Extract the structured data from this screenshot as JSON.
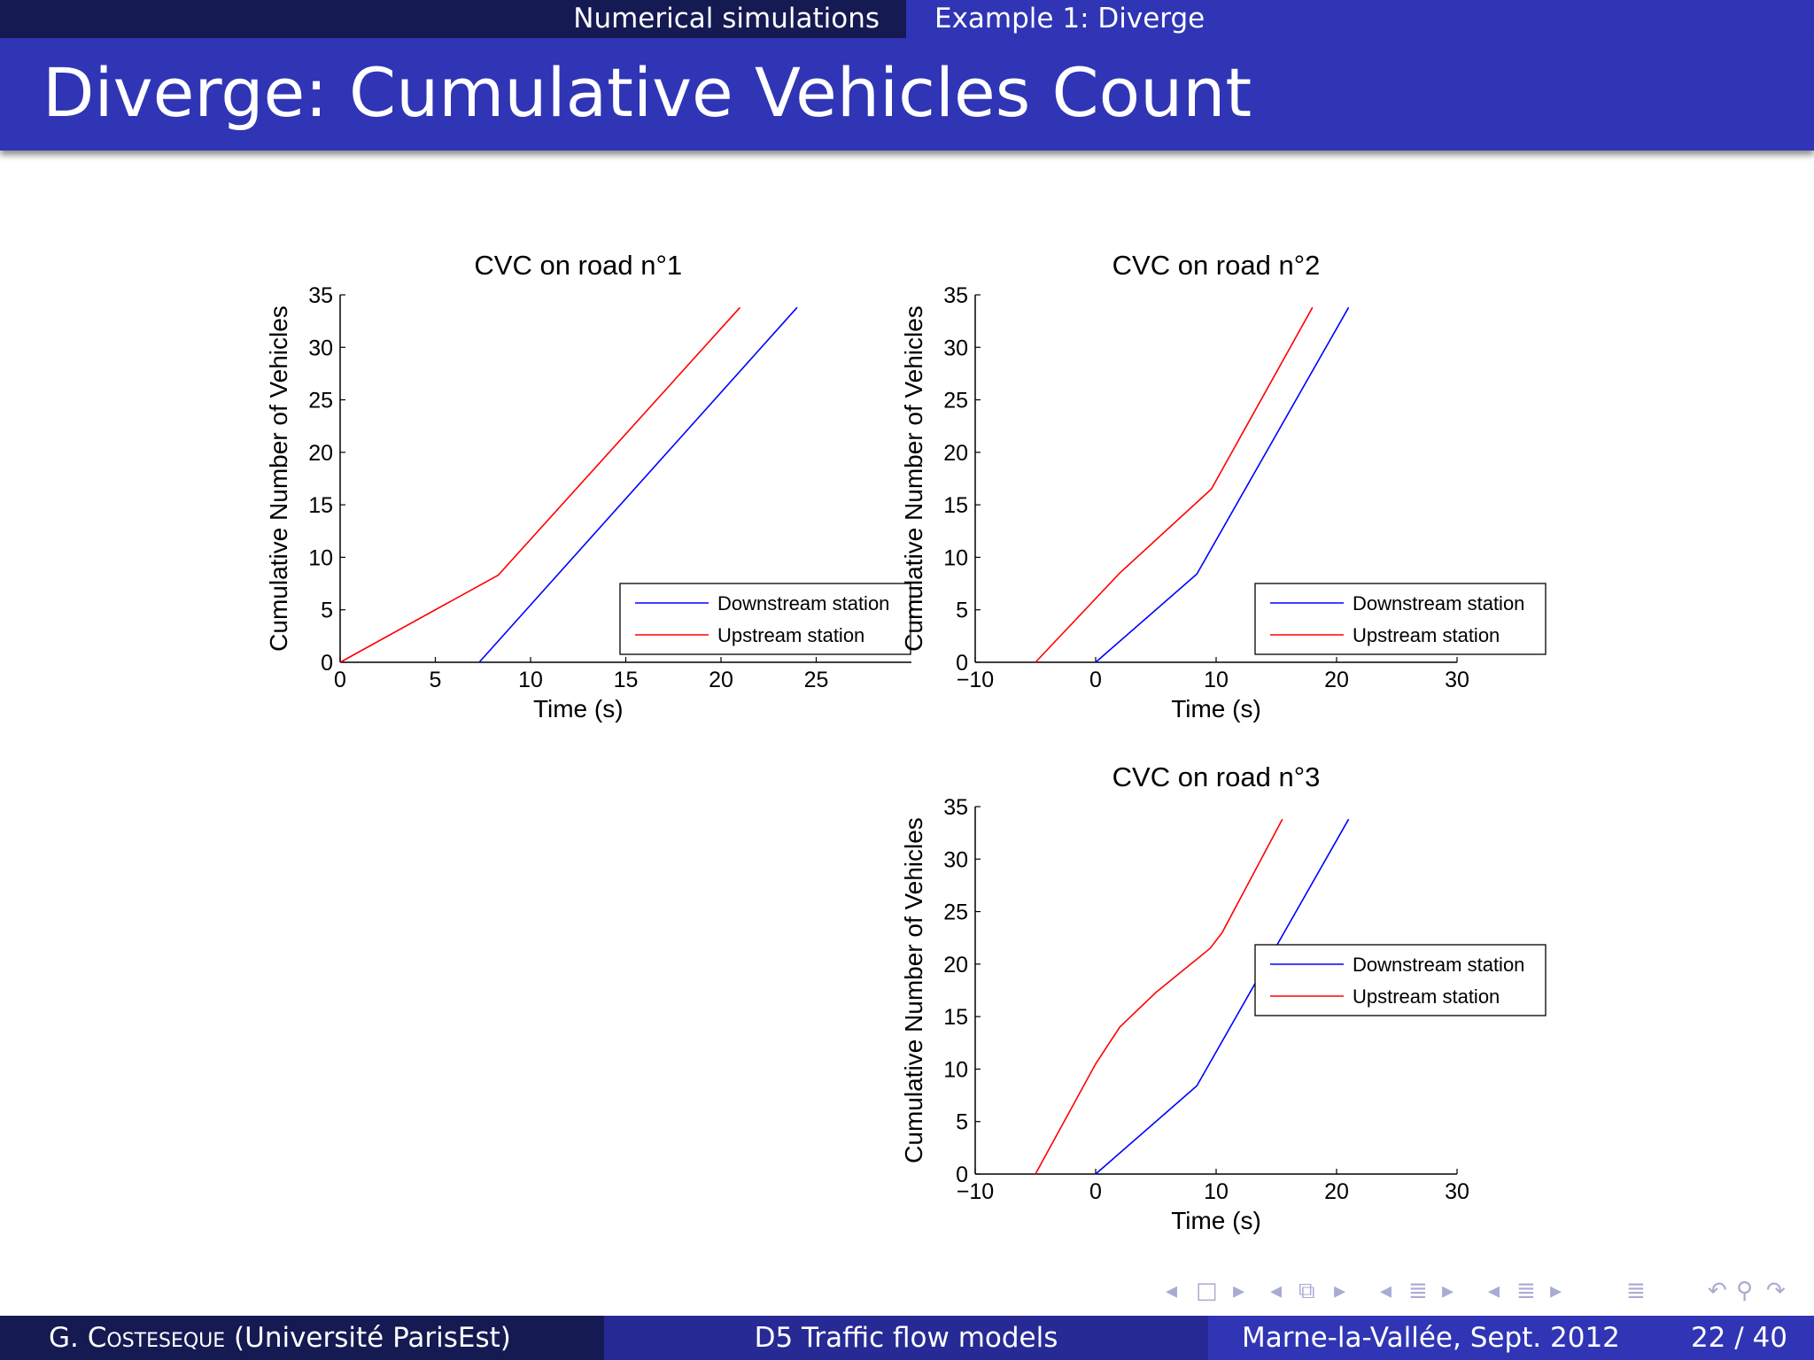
{
  "nav": {
    "section": "Numerical simulations",
    "subsection": "Example 1: Diverge"
  },
  "slide": {
    "title": "Diverge: Cumulative Vehicles Count"
  },
  "footer": {
    "author": "G. Costeseque",
    "institution": "(Université ParisEst)",
    "talk_title": "D5 Traffic flow models",
    "place_date": "Marne-la-Vallée, Sept. 2012",
    "page": "22 / 40"
  },
  "colors": {
    "downstream": "#0000ff",
    "upstream": "#ff0000",
    "nav_dark": "#151a52",
    "nav_accent": "#3035b5"
  },
  "chart_data": [
    {
      "type": "line",
      "title": "CVC on road n°1",
      "xlabel": "Time (s)",
      "ylabel": "Cumulative Number of Vehicles",
      "xlim": [
        0,
        30
      ],
      "ylim": [
        0,
        35
      ],
      "xticks": [
        0,
        5,
        10,
        15,
        20,
        25
      ],
      "xtick_labels": [
        "0",
        "5",
        "10",
        "15",
        "20",
        "25"
      ],
      "yticks": [
        0,
        5,
        10,
        15,
        20,
        25,
        30,
        35
      ],
      "ytick_labels": [
        "0",
        "5",
        "10",
        "15",
        "20",
        "25",
        "30",
        "35"
      ],
      "legend_position": "lower-right",
      "series": [
        {
          "name": "Downstream station",
          "color": "#0000ff",
          "x": [
            7.3,
            24
          ],
          "y": [
            0,
            33.8
          ]
        },
        {
          "name": "Upstream station",
          "color": "#ff0000",
          "x": [
            0,
            8.3,
            21
          ],
          "y": [
            0,
            8.3,
            33.8
          ]
        }
      ]
    },
    {
      "type": "line",
      "title": "CVC on road n°2",
      "xlabel": "Time (s)",
      "ylabel": "Cumulative Number of Vehicles",
      "xlim": [
        -10,
        30
      ],
      "ylim": [
        0,
        35
      ],
      "xticks": [
        -10,
        0,
        10,
        20,
        30
      ],
      "xtick_labels": [
        "−10",
        "0",
        "10",
        "20",
        "30"
      ],
      "yticks": [
        0,
        5,
        10,
        15,
        20,
        25,
        30,
        35
      ],
      "ytick_labels": [
        "0",
        "5",
        "10",
        "15",
        "20",
        "25",
        "30",
        "35"
      ],
      "legend_position": "lower-right",
      "series": [
        {
          "name": "Downstream station",
          "color": "#0000ff",
          "x": [
            0,
            8.4,
            21
          ],
          "y": [
            0,
            8.4,
            33.8
          ]
        },
        {
          "name": "Upstream station",
          "color": "#ff0000",
          "x": [
            -5,
            2,
            9.6,
            18
          ],
          "y": [
            0,
            8.5,
            16.5,
            33.8
          ]
        }
      ]
    },
    {
      "type": "line",
      "title": "CVC on road n°3",
      "xlabel": "Time (s)",
      "ylabel": "Cumulative Number of Vehicles",
      "xlim": [
        -10,
        30
      ],
      "ylim": [
        0,
        35
      ],
      "xticks": [
        -10,
        0,
        10,
        20,
        30
      ],
      "xtick_labels": [
        "−10",
        "0",
        "10",
        "20",
        "30"
      ],
      "yticks": [
        0,
        5,
        10,
        15,
        20,
        25,
        30,
        35
      ],
      "ytick_labels": [
        "0",
        "5",
        "10",
        "15",
        "20",
        "25",
        "30",
        "35"
      ],
      "legend_position": "lower-right",
      "series": [
        {
          "name": "Downstream station",
          "color": "#0000ff",
          "x": [
            0,
            8.4,
            21
          ],
          "y": [
            0,
            8.4,
            33.8
          ]
        },
        {
          "name": "Upstream station",
          "color": "#ff0000",
          "x": [
            -5,
            0,
            2,
            5,
            9.5,
            10.5,
            15.5
          ],
          "y": [
            0,
            10.5,
            14,
            17.3,
            21.5,
            23,
            33.8
          ]
        }
      ]
    }
  ]
}
